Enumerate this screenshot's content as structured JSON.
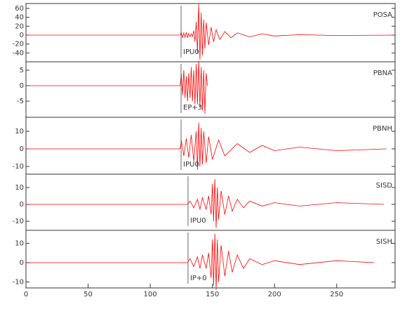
{
  "chart_data": [
    {
      "type": "line",
      "xlim": [
        0,
        297
      ],
      "ylim": [
        -60,
        71
      ],
      "yticks": [
        60,
        40,
        20,
        0,
        -20,
        -40
      ],
      "x": [
        0,
        124,
        125,
        126,
        127,
        128,
        129,
        130,
        131,
        132,
        133,
        134,
        135,
        136,
        137,
        138,
        139,
        140,
        141,
        142,
        143,
        144,
        145,
        147,
        149,
        151,
        153,
        156,
        160,
        165,
        170,
        180,
        190,
        200,
        220,
        250,
        297
      ],
      "series": [
        {
          "name": "POSA",
          "color": "#ff0000",
          "values": [
            0,
            0,
            6,
            -6,
            5,
            -5,
            6,
            -6,
            4,
            -4,
            3,
            -3,
            10,
            -15,
            30,
            -40,
            70,
            -55,
            50,
            -45,
            35,
            -30,
            28,
            -22,
            18,
            -15,
            12,
            -10,
            8,
            -6,
            5,
            -4,
            3,
            -2,
            1,
            -1,
            0
          ]
        }
      ],
      "annotations": [
        {
          "x": 124.8,
          "label": "IPU0"
        }
      ]
    },
    {
      "type": "line",
      "xlim": [
        0,
        297
      ],
      "ylim": [
        -10.2,
        7.7
      ],
      "yticks": [
        5,
        0,
        -5
      ],
      "x": [
        0,
        124,
        125,
        126,
        127,
        128,
        129,
        130,
        131,
        132,
        133,
        134,
        135,
        136,
        137,
        138,
        139,
        140,
        141,
        142,
        143,
        144,
        145,
        146
      ],
      "series": [
        {
          "name": "PBNA",
          "color": "#ff0000",
          "values": [
            0,
            0,
            4,
            -3,
            5,
            -4,
            3,
            -5,
            4,
            -4,
            6,
            -5,
            5,
            -6,
            7,
            -6,
            8,
            -7,
            6,
            -8,
            5,
            -9,
            4,
            0
          ]
        }
      ],
      "annotations": [
        {
          "x": 124.8,
          "label": "EP+3"
        }
      ]
    },
    {
      "type": "line",
      "xlim": [
        0,
        297
      ],
      "ylim": [
        -14.4,
        18
      ],
      "yticks": [
        10,
        0,
        -10
      ],
      "x": [
        0,
        124,
        125,
        127,
        129,
        131,
        133,
        135,
        137,
        138,
        139,
        140,
        141,
        142,
        143,
        145,
        147,
        150,
        155,
        160,
        170,
        180,
        190,
        200,
        220,
        250,
        290
      ],
      "series": [
        {
          "name": "PBNH",
          "color": "#ff0000",
          "values": [
            0,
            0,
            5,
            -4,
            6,
            -5,
            8,
            -7,
            10,
            -12,
            15,
            -10,
            12,
            -9,
            10,
            -8,
            7,
            -6,
            5,
            -4,
            3,
            -2,
            2,
            -1,
            1,
            -1,
            0
          ]
        }
      ],
      "annotations": [
        {
          "x": 124.8,
          "label": "IPU0"
        }
      ]
    },
    {
      "type": "line",
      "xlim": [
        0,
        297
      ],
      "ylim": [
        -15.4,
        17.9
      ],
      "yticks": [
        10,
        0,
        -10
      ],
      "x": [
        0,
        130,
        132,
        135,
        138,
        140,
        142,
        145,
        147,
        149,
        150,
        151,
        152,
        153,
        154,
        155,
        157,
        160,
        163,
        166,
        170,
        175,
        180,
        190,
        200,
        220,
        250,
        288
      ],
      "series": [
        {
          "name": "SISD",
          "color": "#ff0000",
          "values": [
            0,
            0,
            2,
            -2,
            3,
            -3,
            4,
            -3,
            5,
            -6,
            12,
            -10,
            15,
            -14,
            10,
            -9,
            8,
            -6,
            5,
            -4,
            3,
            -2,
            2,
            -1,
            1,
            -1,
            1,
            0
          ]
        }
      ],
      "annotations": [
        {
          "x": 130.4,
          "label": "IPU0"
        }
      ]
    },
    {
      "type": "line",
      "xlim": [
        0,
        297
      ],
      "ylim": [
        -13.1,
        16.7
      ],
      "yticks": [
        10,
        0,
        -10
      ],
      "xticks": [
        0,
        50,
        100,
        150,
        200,
        250
      ],
      "x": [
        0,
        130,
        132,
        135,
        138,
        140,
        142,
        145,
        147,
        149,
        150,
        151,
        152,
        153,
        154,
        155,
        157,
        160,
        163,
        166,
        170,
        175,
        180,
        190,
        200,
        220,
        250,
        280
      ],
      "series": [
        {
          "name": "SISH",
          "color": "#ff0000",
          "values": [
            0,
            0,
            2,
            -2,
            3,
            -3,
            4,
            -3,
            5,
            -8,
            12,
            -12,
            15,
            -14,
            12,
            -10,
            9,
            -7,
            6,
            -5,
            4,
            -3,
            2,
            -1,
            1,
            -1,
            1,
            0
          ]
        }
      ],
      "annotations": [
        {
          "x": 130.4,
          "label": "IP+0"
        }
      ]
    }
  ]
}
